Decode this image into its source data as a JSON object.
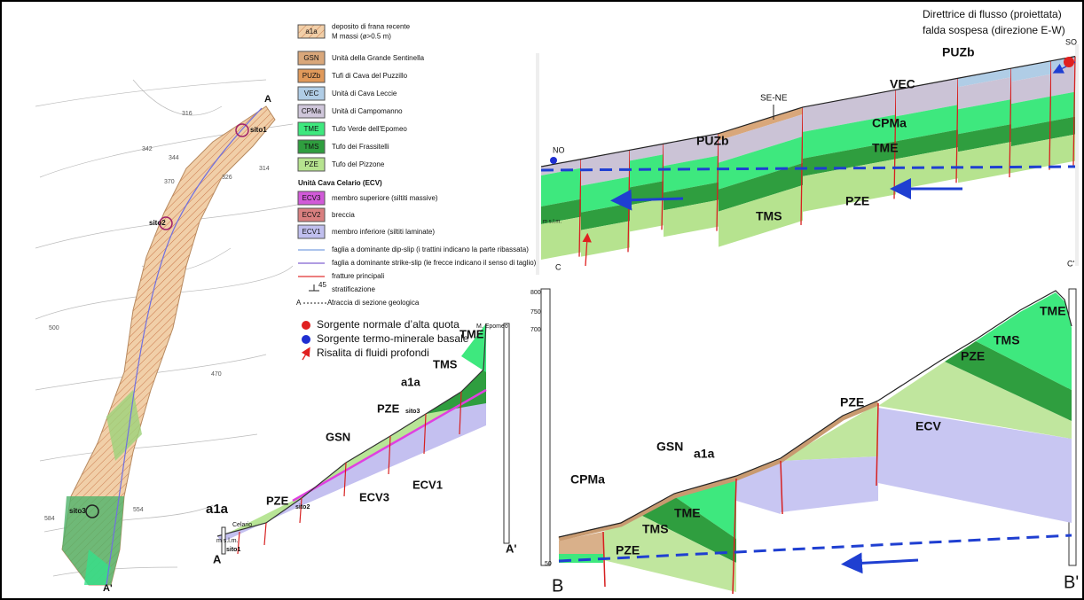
{
  "map": {
    "point_a": "A",
    "point_a_prime": "A'",
    "sites": [
      "sito1",
      "sito2",
      "sito3"
    ],
    "contours": [
      "316",
      "342",
      "344",
      "370",
      "314",
      "326",
      "500",
      "470",
      "554",
      "584"
    ]
  },
  "legend": {
    "units": [
      {
        "code": "a1a",
        "label_lines": [
          "deposito di frana recente",
          "M massi (ø>0.5 m)"
        ]
      },
      {
        "code": "GSN",
        "label_lines": [
          "Unità della Grande Sentinella"
        ]
      },
      {
        "code": "PUZb",
        "label_lines": [
          "Tufi di Cava del Puzzillo"
        ]
      },
      {
        "code": "VEC",
        "label_lines": [
          "Unità di Cava Leccie"
        ]
      },
      {
        "code": "CPMa",
        "label_lines": [
          "Unità di Campomanno"
        ]
      },
      {
        "code": "TME",
        "label_lines": [
          "Tufo Verde dell'Epomeo"
        ]
      },
      {
        "code": "TMS",
        "label_lines": [
          "Tufo dei Frassitelli"
        ]
      },
      {
        "code": "PZE",
        "label_lines": [
          "Tufo del Pizzone"
        ]
      }
    ],
    "group_title": "Unità Cava Celario (ECV)",
    "group_units": [
      {
        "code": "ECV3",
        "label": "membro superiore (siltiti massive)"
      },
      {
        "code": "ECV2",
        "label": "breccia"
      },
      {
        "code": "ECV1",
        "label": "membro inferiore (siltiti laminate)"
      }
    ],
    "symbols": [
      "faglia a dominante dip-slip (i trattini indicano la parte ribassata)",
      "faglia a dominante strike-slip (le frecce indicano il senso di taglio)",
      "fratture principali",
      "stratificazione",
      "traccia di sezione geologica"
    ],
    "dip_value": "45",
    "trace_ends": [
      "A",
      "A'"
    ]
  },
  "sources": [
    "Sorgente normale d’alta quota",
    "Sorgente termo-minerale basale",
    "Risalita di fluidi profondi"
  ],
  "section_a": {
    "labels": [
      "a1a",
      "PZE",
      "sito2",
      "GSN",
      "ECV3",
      "ECV1",
      "PZE",
      "sito3",
      "a1a",
      "TMS",
      "TME",
      "M. Epomeo",
      "A",
      "A'",
      "Celario",
      "sito1",
      "m s.l.m."
    ]
  },
  "section_c": {
    "annotation": [
      "Direttrice di flusso (proiettata)",
      "falda sospesa (direzione E-W)"
    ],
    "labels": [
      "NO",
      "C",
      "SO",
      "C'",
      "SE-NE",
      "PUZb",
      "VEC",
      "PUZb",
      "CPMa",
      "TME",
      "TMS",
      "PZE",
      "m s.l.m."
    ]
  },
  "section_b": {
    "labels": [
      "CPMa",
      "GSN",
      "a1a",
      "TME",
      "TMS",
      "PZE",
      "PZE",
      "ECV",
      "PZE",
      "TMS",
      "TME",
      "B",
      "B'"
    ],
    "axis": [
      "800",
      "750",
      "700",
      "50"
    ]
  }
}
